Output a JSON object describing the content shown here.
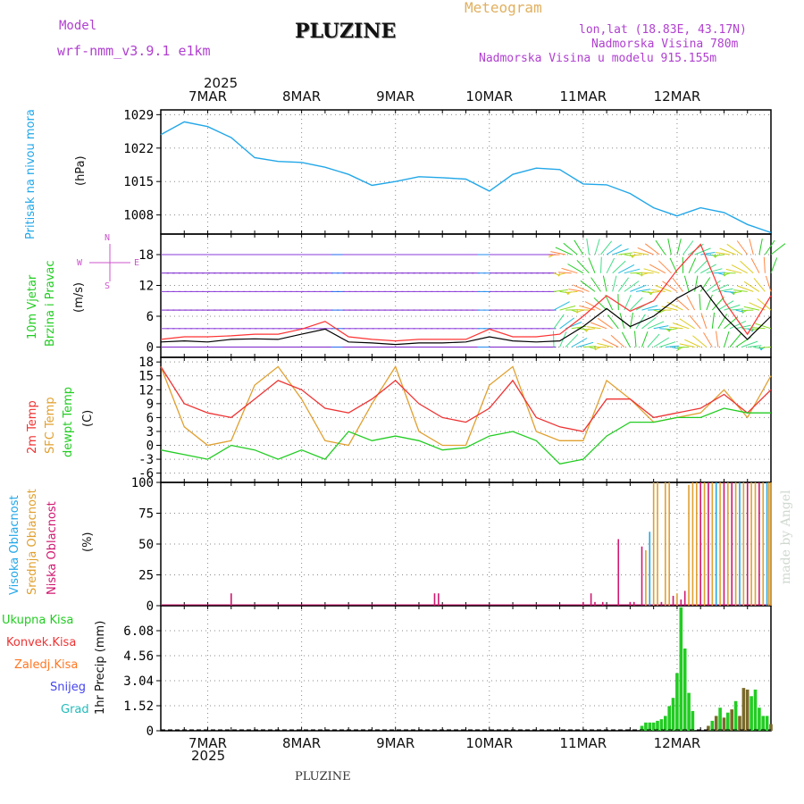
{
  "header": {
    "model_label": "Model",
    "model_name": "wrf-nmm_v3.9.1 e1km",
    "title": "PLUZINE",
    "meteogram": "Meteogram",
    "lonlat": "lon,lat (18.83E, 43.17N)",
    "altitude": "Nadmorska Visina 780m",
    "model_altitude": "Nadmorska Visina u modelu 915.155m",
    "footer": "PLUZINE",
    "credit": "made by Angel",
    "year": "2025"
  },
  "colors": {
    "pressure": "#22a7e8",
    "wind_speed": "#000000",
    "gust": "#ff3333",
    "temp2m": "#ee3333",
    "sfc_temp": "#e0a030",
    "dewpt": "#22cc22",
    "high_cloud": "#22a7e8",
    "mid_cloud": "#e0a030",
    "low_cloud": "#d01870",
    "total_precip": "#22cc22",
    "conv_precip": "#ee3333",
    "frz_rain": "#ff7722",
    "snow": "#4444ee",
    "hail": "#22bbbb",
    "wind_label": "#22cc22",
    "compass": "#cc55cc"
  },
  "compass": {
    "n": "N",
    "e": "E",
    "w": "W",
    "s": "S"
  },
  "chart_data": [
    {
      "type": "line",
      "ylabel": "Pritisak na nivou mora",
      "unit": "(hPa)",
      "ylim": [
        1004,
        1030
      ],
      "yticks": [
        1008,
        1015,
        1022,
        1029
      ],
      "grid": true,
      "x": [
        0,
        6,
        12,
        18,
        24,
        30,
        36,
        42,
        48,
        54,
        60,
        66,
        72,
        78,
        84,
        90,
        96,
        102,
        108,
        114,
        120,
        126,
        132,
        138,
        144,
        150,
        156
      ],
      "series": [
        {
          "values": [
            1024.8,
            1027.5,
            1026.5,
            1024.2,
            1020.0,
            1019.2,
            1019.0,
            1018.0,
            1016.5,
            1014.2,
            1015.0,
            1016.0,
            1015.8,
            1015.5,
            1013.0,
            1016.5,
            1017.8,
            1017.5,
            1014.5,
            1014.3,
            1012.5,
            1009.5,
            1007.8,
            1009.5,
            1008.5,
            1006.0,
            1004.3
          ]
        }
      ]
    },
    {
      "type": "line",
      "ylabel": "10m Vjetar Brzina i Pravac",
      "unit": "(m/s)",
      "ylim": [
        -2,
        22
      ],
      "yticks": [
        0,
        6,
        12,
        18
      ],
      "grid": true,
      "x": [
        0,
        6,
        12,
        18,
        24,
        30,
        36,
        42,
        48,
        54,
        60,
        66,
        72,
        78,
        84,
        90,
        96,
        102,
        108,
        114,
        120,
        126,
        132,
        138,
        144,
        150,
        156
      ],
      "series": [
        {
          "name": "speed",
          "values": [
            1.0,
            1.2,
            1.0,
            1.5,
            1.6,
            1.5,
            2.5,
            3.5,
            1.0,
            0.8,
            0.5,
            0.8,
            0.8,
            1.0,
            2.0,
            1.2,
            1.0,
            1.2,
            4.0,
            7.5,
            4.0,
            6.0,
            9.5,
            12.0,
            6.0,
            1.5,
            6.0
          ]
        },
        {
          "name": "gust",
          "values": [
            1.5,
            2.0,
            2.0,
            2.2,
            2.5,
            2.5,
            3.5,
            5.0,
            2.0,
            1.5,
            1.2,
            1.5,
            1.5,
            1.5,
            3.5,
            2.0,
            2.0,
            2.5,
            6.0,
            10.0,
            7.0,
            9.0,
            15.0,
            20.0,
            9.0,
            2.5,
            10.0
          ]
        }
      ]
    },
    {
      "type": "line",
      "ylabel_lines": [
        "2m Temp",
        "SFC Temp",
        "dewpt Temp"
      ],
      "unit": "(C)",
      "ylim": [
        -8,
        19
      ],
      "yticks": [
        -6,
        -3,
        0,
        3,
        6,
        9,
        12,
        15,
        18
      ],
      "grid": true,
      "x": [
        0,
        6,
        12,
        18,
        24,
        30,
        36,
        42,
        48,
        54,
        60,
        66,
        72,
        78,
        84,
        90,
        96,
        102,
        108,
        114,
        120,
        126,
        132,
        138,
        144,
        150,
        156
      ],
      "series": [
        {
          "name": "2m Temp",
          "values": [
            17,
            9,
            7,
            6,
            10,
            14,
            12,
            8,
            7,
            10,
            14,
            9,
            6,
            5,
            8,
            14,
            6,
            4,
            3,
            10,
            10,
            6,
            7,
            8,
            11,
            7,
            12
          ]
        },
        {
          "name": "SFC Temp",
          "values": [
            17,
            4,
            0,
            1,
            13,
            17,
            10,
            1,
            0,
            9,
            17,
            3,
            0,
            0,
            13,
            17,
            3,
            1,
            1,
            14,
            10,
            5,
            6,
            7,
            12,
            6,
            15
          ]
        },
        {
          "name": "dewpt Temp",
          "values": [
            -1,
            -2,
            -3,
            0,
            -1,
            -3,
            -1,
            -3,
            3,
            1,
            2,
            1,
            -1,
            -0.5,
            2,
            3,
            1,
            -4,
            -3,
            2,
            5,
            5,
            6,
            6,
            8,
            7,
            7
          ]
        }
      ]
    },
    {
      "type": "bar",
      "ylabel_lines": [
        "Visoka Oblacnost",
        "Srednja Oblacnost",
        "Niska Oblacnost"
      ],
      "unit": "(%)",
      "ylim": [
        0,
        100
      ],
      "yticks": [
        0,
        25,
        50,
        75,
        100
      ],
      "grid": true,
      "bars": [
        {
          "x": 18,
          "series": "low",
          "value": 10
        },
        {
          "x": 70,
          "series": "low",
          "value": 10
        },
        {
          "x": 71,
          "series": "low",
          "value": 10
        },
        {
          "x": 108,
          "series": "low",
          "value": 3
        },
        {
          "x": 110,
          "series": "low",
          "value": 10
        },
        {
          "x": 111,
          "series": "low",
          "value": 3
        },
        {
          "x": 113,
          "series": "low",
          "value": 3
        },
        {
          "x": 117,
          "series": "low",
          "value": 54
        },
        {
          "x": 120,
          "series": "low",
          "value": 3
        },
        {
          "x": 121,
          "series": "low",
          "value": 3
        },
        {
          "x": 123,
          "series": "low",
          "value": 48
        },
        {
          "x": 124,
          "series": "mid",
          "value": 45
        },
        {
          "x": 125,
          "series": "high",
          "value": 60
        },
        {
          "x": 126,
          "series": "mid",
          "value": 100
        },
        {
          "x": 127,
          "series": "mid",
          "value": 100
        },
        {
          "x": 128,
          "series": "low",
          "value": 3
        },
        {
          "x": 129,
          "series": "mid",
          "value": 100
        },
        {
          "x": 130,
          "series": "mid",
          "value": 100
        },
        {
          "x": 131,
          "series": "low",
          "value": 8
        },
        {
          "x": 132,
          "series": "mid",
          "value": 10
        },
        {
          "x": 133,
          "series": "low",
          "value": 5
        },
        {
          "x": 134,
          "series": "low",
          "value": 12
        },
        {
          "x": 135,
          "series": "mid",
          "value": 98
        },
        {
          "x": 136,
          "series": "mid",
          "value": 100
        },
        {
          "x": 137,
          "series": "mid",
          "value": 100
        },
        {
          "x": 138,
          "series": "low",
          "value": 100
        },
        {
          "x": 139,
          "series": "mid",
          "value": 100
        },
        {
          "x": 140,
          "series": "low",
          "value": 100
        },
        {
          "x": 141,
          "series": "mid",
          "value": 100
        },
        {
          "x": 142,
          "series": "high",
          "value": 100
        },
        {
          "x": 143,
          "series": "mid",
          "value": 100
        },
        {
          "x": 144,
          "series": "low",
          "value": 100
        },
        {
          "x": 145,
          "series": "mid",
          "value": 100
        },
        {
          "x": 146,
          "series": "low",
          "value": 100
        },
        {
          "x": 147,
          "series": "mid",
          "value": 100
        },
        {
          "x": 148,
          "series": "high",
          "value": 100
        },
        {
          "x": 149,
          "series": "mid",
          "value": 100
        },
        {
          "x": 150,
          "series": "low",
          "value": 100
        },
        {
          "x": 151,
          "series": "mid",
          "value": 100
        },
        {
          "x": 152,
          "series": "mid",
          "value": 100
        },
        {
          "x": 153,
          "series": "low",
          "value": 100
        },
        {
          "x": 154,
          "series": "mid",
          "value": 100
        },
        {
          "x": 155,
          "series": "high",
          "value": 100
        },
        {
          "x": 155.5,
          "series": "mid",
          "value": 100
        },
        {
          "x": 156,
          "series": "mid",
          "value": 100
        }
      ]
    },
    {
      "type": "bar",
      "ylabel": "1hr Precip",
      "unit": "(mm)",
      "ylim": [
        0,
        7.6
      ],
      "yticks": [
        0,
        1.52,
        3.04,
        4.56,
        6.08
      ],
      "ytick_labels": [
        "0",
        "1.52",
        "3.04",
        "4.56",
        "6.08"
      ],
      "grid": true,
      "legend": [
        "Ukupna Kisa",
        "Konvek.Kisa",
        "Zaledj.Kisa",
        "Snijeg",
        "Grad"
      ],
      "bars": [
        {
          "x": 123,
          "series": "total",
          "value": 0.3
        },
        {
          "x": 124,
          "series": "total",
          "value": 0.5
        },
        {
          "x": 125,
          "series": "total",
          "value": 0.5
        },
        {
          "x": 126,
          "series": "total",
          "value": 0.5
        },
        {
          "x": 127,
          "series": "total",
          "value": 0.6
        },
        {
          "x": 128,
          "series": "total",
          "value": 0.7
        },
        {
          "x": 129,
          "series": "total",
          "value": 0.9
        },
        {
          "x": 130,
          "series": "total",
          "value": 1.5
        },
        {
          "x": 131,
          "series": "total",
          "value": 2.0
        },
        {
          "x": 132,
          "series": "total",
          "value": 3.5
        },
        {
          "x": 133,
          "series": "total",
          "value": 7.5
        },
        {
          "x": 134,
          "series": "total",
          "value": 5.0
        },
        {
          "x": 135,
          "series": "total",
          "value": 2.3
        },
        {
          "x": 136,
          "series": "total",
          "value": 1.2
        },
        {
          "x": 140,
          "series": "conv",
          "value": 0.3
        },
        {
          "x": 141,
          "series": "total",
          "value": 0.6
        },
        {
          "x": 142,
          "series": "conv",
          "value": 0.9
        },
        {
          "x": 143,
          "series": "total",
          "value": 1.4
        },
        {
          "x": 144,
          "series": "conv",
          "value": 0.8
        },
        {
          "x": 145,
          "series": "total",
          "value": 1.1
        },
        {
          "x": 146,
          "series": "conv",
          "value": 1.3
        },
        {
          "x": 147,
          "series": "total",
          "value": 1.8
        },
        {
          "x": 148,
          "series": "conv",
          "value": 0.9
        },
        {
          "x": 149,
          "series": "conv",
          "value": 2.6
        },
        {
          "x": 150,
          "series": "conv",
          "value": 2.5
        },
        {
          "x": 151,
          "series": "total",
          "value": 2.1
        },
        {
          "x": 152,
          "series": "total",
          "value": 2.5
        },
        {
          "x": 153,
          "series": "total",
          "value": 1.4
        },
        {
          "x": 154,
          "series": "total",
          "value": 0.9
        },
        {
          "x": 155,
          "series": "total",
          "value": 0.9
        },
        {
          "x": 156,
          "series": "conv",
          "value": 0.4
        }
      ]
    }
  ],
  "time_axis": {
    "start_hour_offset": 0,
    "labels": [
      {
        "hour": 12,
        "label": "7MAR"
      },
      {
        "hour": 36,
        "label": "8MAR"
      },
      {
        "hour": 60,
        "label": "9MAR"
      },
      {
        "hour": 84,
        "label": "10MAR"
      },
      {
        "hour": 108,
        "label": "11MAR"
      },
      {
        "hour": 132,
        "label": "12MAR"
      }
    ]
  }
}
